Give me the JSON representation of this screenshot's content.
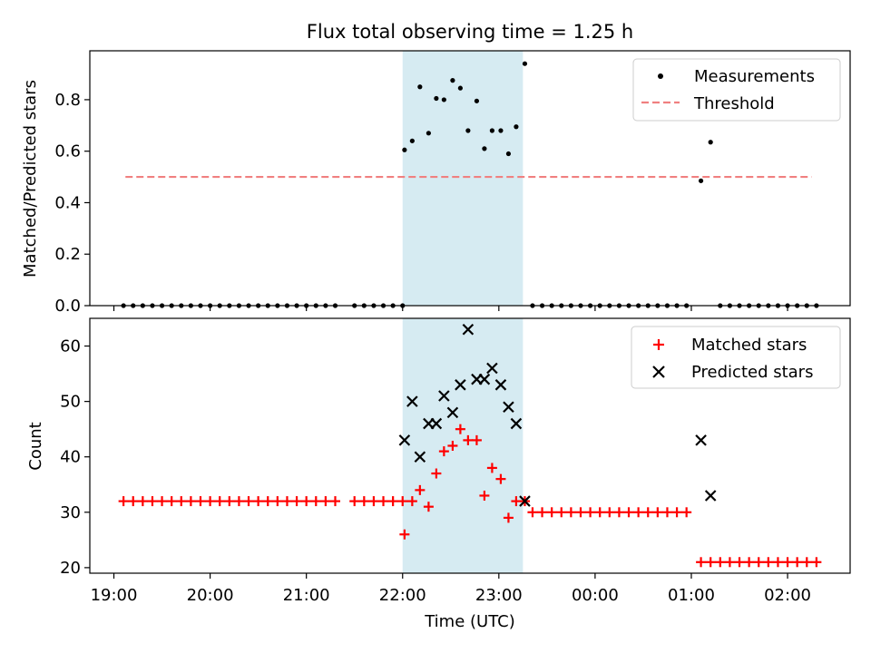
{
  "chart_data": [
    {
      "panel": "top",
      "type": "scatter",
      "title": "Flux total observing time = 1.25 h",
      "xlabel": "",
      "ylabel": "Matched/Predicted stars",
      "ylim": [
        0,
        0.99
      ],
      "yticks": [
        0.0,
        0.2,
        0.4,
        0.6,
        0.8
      ],
      "ytick_labels": [
        "0.0",
        "0.2",
        "0.4",
        "0.6",
        "0.8"
      ],
      "highlight_span": {
        "x0": 22.0,
        "x1": 23.25,
        "color": "#add8e6"
      },
      "legend": {
        "position": "top-right",
        "entries": [
          "Measurements",
          "Threshold"
        ]
      },
      "series": [
        {
          "name": "Measurements",
          "marker": "dot",
          "color": "#000000",
          "x": [
            19.1,
            19.2,
            19.3,
            19.4,
            19.5,
            19.6,
            19.7,
            19.8,
            19.9,
            20.0,
            20.1,
            20.2,
            20.3,
            20.4,
            20.5,
            20.6,
            20.7,
            20.8,
            20.9,
            21.0,
            21.1,
            21.2,
            21.3,
            21.5,
            21.6,
            21.7,
            21.8,
            21.9,
            22.0,
            22.02,
            22.1,
            22.18,
            22.27,
            22.35,
            22.43,
            22.52,
            22.6,
            22.68,
            22.77,
            22.85,
            22.93,
            23.02,
            23.1,
            23.18,
            23.27,
            23.35,
            23.45,
            23.55,
            23.65,
            23.75,
            23.85,
            23.95,
            24.05,
            24.15,
            24.25,
            24.35,
            24.45,
            24.55,
            24.65,
            24.75,
            24.85,
            24.95,
            25.1,
            25.2,
            25.3,
            25.4,
            25.5,
            25.6,
            25.7,
            25.8,
            25.9,
            26.0,
            26.1,
            26.2,
            26.3
          ],
          "y": [
            0,
            0,
            0,
            0,
            0,
            0,
            0,
            0,
            0,
            0,
            0,
            0,
            0,
            0,
            0,
            0,
            0,
            0,
            0,
            0,
            0,
            0,
            0,
            0,
            0,
            0,
            0,
            0,
            0,
            0.605,
            0.64,
            0.85,
            0.67,
            0.805,
            0.8,
            0.875,
            0.845,
            0.68,
            0.795,
            0.61,
            0.68,
            0.68,
            0.59,
            0.695,
            0.94,
            0,
            0,
            0,
            0,
            0,
            0,
            0,
            0,
            0,
            0,
            0,
            0,
            0,
            0,
            0,
            0,
            0,
            0.485,
            0.635,
            0,
            0,
            0,
            0,
            0,
            0,
            0,
            0,
            0,
            0,
            0
          ]
        },
        {
          "name": "Threshold",
          "style": "dashed",
          "color": "#f08080",
          "x": [
            19.12,
            26.25
          ],
          "y": [
            0.5,
            0.5
          ]
        }
      ]
    },
    {
      "panel": "bottom",
      "type": "scatter",
      "title": "",
      "xlabel": "Time (UTC)",
      "ylabel": "Count",
      "ylim": [
        19,
        65
      ],
      "yticks": [
        20,
        30,
        40,
        50,
        60
      ],
      "ytick_labels": [
        "20",
        "30",
        "40",
        "50",
        "60"
      ],
      "xlim": [
        18.75,
        26.65
      ],
      "xticks": [
        19,
        20,
        21,
        22,
        23,
        24,
        25,
        26
      ],
      "xtick_labels": [
        "19:00",
        "20:00",
        "21:00",
        "22:00",
        "23:00",
        "00:00",
        "01:00",
        "02:00"
      ],
      "highlight_span": {
        "x0": 22.0,
        "x1": 23.25,
        "color": "#add8e6"
      },
      "legend": {
        "position": "top-right",
        "entries": [
          "Matched stars",
          "Predicted stars"
        ]
      },
      "series": [
        {
          "name": "Matched stars",
          "marker": "plus",
          "color": "#ff0000",
          "x": [
            19.1,
            19.2,
            19.3,
            19.4,
            19.5,
            19.6,
            19.7,
            19.8,
            19.9,
            20.0,
            20.1,
            20.2,
            20.3,
            20.4,
            20.5,
            20.6,
            20.7,
            20.8,
            20.9,
            21.0,
            21.1,
            21.2,
            21.3,
            21.5,
            21.6,
            21.7,
            21.8,
            21.9,
            22.0,
            22.02,
            22.1,
            22.18,
            22.27,
            22.35,
            22.43,
            22.52,
            22.6,
            22.68,
            22.77,
            22.85,
            22.93,
            23.02,
            23.1,
            23.18,
            23.27,
            23.35,
            23.45,
            23.55,
            23.65,
            23.75,
            23.85,
            23.95,
            24.05,
            24.15,
            24.25,
            24.35,
            24.45,
            24.55,
            24.65,
            24.75,
            24.85,
            24.95,
            25.1,
            25.2,
            25.3,
            25.4,
            25.5,
            25.6,
            25.7,
            25.8,
            25.9,
            26.0,
            26.1,
            26.2,
            26.3
          ],
          "y": [
            32,
            32,
            32,
            32,
            32,
            32,
            32,
            32,
            32,
            32,
            32,
            32,
            32,
            32,
            32,
            32,
            32,
            32,
            32,
            32,
            32,
            32,
            32,
            32,
            32,
            32,
            32,
            32,
            32,
            26,
            32,
            34,
            31,
            37,
            41,
            42,
            45,
            43,
            43,
            33,
            38,
            36,
            29,
            32,
            32,
            30,
            30,
            30,
            30,
            30,
            30,
            30,
            30,
            30,
            30,
            30,
            30,
            30,
            30,
            30,
            30,
            30,
            21,
            21,
            21,
            21,
            21,
            21,
            21,
            21,
            21,
            21,
            21,
            21,
            21
          ]
        },
        {
          "name": "Predicted stars",
          "marker": "x",
          "color": "#000000",
          "x": [
            22.02,
            22.1,
            22.18,
            22.27,
            22.35,
            22.43,
            22.52,
            22.6,
            22.68,
            22.77,
            22.85,
            22.93,
            23.02,
            23.1,
            23.18,
            23.27,
            25.1,
            25.2
          ],
          "y": [
            43,
            50,
            40,
            46,
            46,
            51,
            48,
            53,
            63,
            54,
            54,
            56,
            53,
            49,
            46,
            32,
            43,
            33
          ]
        }
      ]
    }
  ]
}
